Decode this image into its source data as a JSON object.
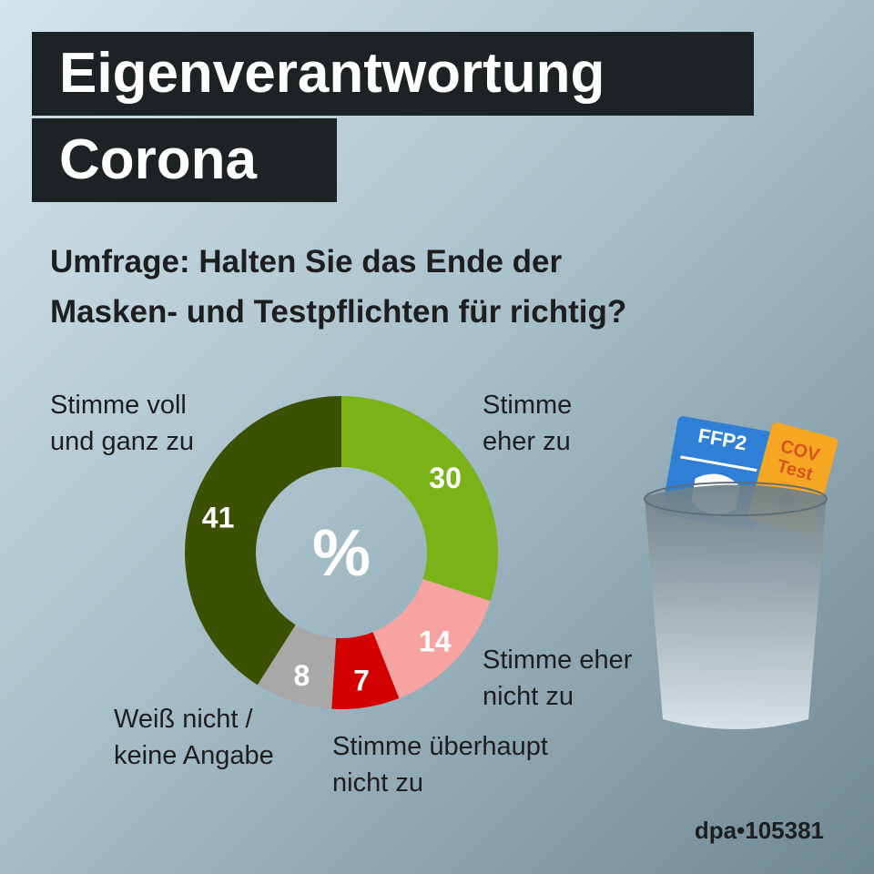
{
  "chart_data": {
    "type": "donut",
    "title": [
      "Eigenverantwortung",
      "Corona"
    ],
    "subtitle": [
      "Umfrage: Halten Sie das Ende der",
      "Masken- und Testpflichten für richtig?"
    ],
    "center_label": "%",
    "categories": [
      "Stimme eher zu",
      "Stimme eher nicht zu",
      "Stimme überhaupt nicht zu",
      "Weiß nicht / keine Angabe",
      "Stimme voll und ganz zu"
    ],
    "values": [
      30,
      14,
      7,
      8,
      41
    ],
    "colors": [
      "#7ab317",
      "#f7a3a1",
      "#d40000",
      "#a8a8a8",
      "#3b5000"
    ],
    "source": "dpa•105381",
    "illustration_labels": [
      "FFP2",
      "COV",
      "Test"
    ]
  }
}
